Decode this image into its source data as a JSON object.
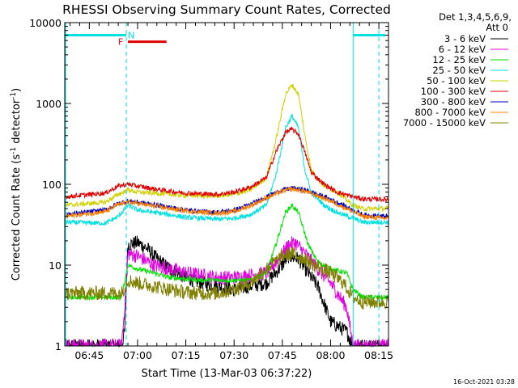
{
  "chart_data": {
    "type": "line",
    "title": "RHESSI Observing Summary Count Rates, Corrected",
    "xlabel": "Start Time (13-Mar-03 06:37:22)",
    "ylabel_main": "Corrected Count Rate (s",
    "ylabel_sup1": "-1",
    "ylabel_mid": " detector",
    "ylabel_sup2": "-1",
    "ylabel_end": ")",
    "footer": "16-Oct-2021 03:28",
    "y_scale": "log",
    "ylim": [
      1,
      10000
    ],
    "xlim": [
      "06:37:22",
      "08:18:00"
    ],
    "x_ticks": [
      "06:45",
      "07:00",
      "07:15",
      "07:30",
      "07:45",
      "08:00",
      "08:15"
    ],
    "y_ticks": [
      "1",
      "10",
      "100",
      "1000",
      "10000"
    ],
    "legend_header": [
      "Det 1,3,4,5,6,9,",
      "Att 0"
    ],
    "legend_position": "right",
    "attenuator_segments": [
      {
        "label": "",
        "start": "06:37:22",
        "end": "06:56:30",
        "y": 7000,
        "color": "#00e0e0"
      },
      {
        "label": "N",
        "start": "06:56:30",
        "end": "06:57:00",
        "y": 7000,
        "color": "#00e0e0"
      },
      {
        "label": "",
        "start": "08:07:00",
        "end": "08:17:00",
        "y": 7000,
        "color": "#00e0e0"
      },
      {
        "label": "F",
        "start": "06:57:00",
        "end": "07:09:00",
        "y": 5800,
        "color": "#e00000"
      }
    ],
    "night_boundaries": [
      "06:56:30",
      "08:07:00",
      "08:15:00"
    ],
    "series": [
      {
        "name": "3 - 6 keV",
        "color": "#000000",
        "points": [
          [
            "06:37:22",
            1
          ],
          [
            "06:55:00",
            1
          ],
          [
            "06:56:00",
            1.5
          ],
          [
            "06:57:00",
            18
          ],
          [
            "07:00:00",
            19
          ],
          [
            "07:03:00",
            16
          ],
          [
            "07:06:00",
            12
          ],
          [
            "07:10:00",
            9
          ],
          [
            "07:15:00",
            7
          ],
          [
            "07:20:00",
            6
          ],
          [
            "07:25:00",
            5.5
          ],
          [
            "07:30:00",
            5
          ],
          [
            "07:35:00",
            5.5
          ],
          [
            "07:40:00",
            6
          ],
          [
            "07:44:00",
            9
          ],
          [
            "07:47:00",
            13
          ],
          [
            "07:50:00",
            12
          ],
          [
            "07:53:00",
            8
          ],
          [
            "07:56:00",
            5.5
          ],
          [
            "08:00:00",
            2
          ],
          [
            "08:05:00",
            1.5
          ],
          [
            "08:07:00",
            1
          ]
        ]
      },
      {
        "name": "6 - 12 keV",
        "color": "#e000e0",
        "points": [
          [
            "06:37:22",
            1
          ],
          [
            "06:55:00",
            1
          ],
          [
            "06:56:00",
            3
          ],
          [
            "06:57:00",
            14
          ],
          [
            "07:00:00",
            13
          ],
          [
            "07:05:00",
            10
          ],
          [
            "07:10:00",
            9
          ],
          [
            "07:15:00",
            8
          ],
          [
            "07:20:00",
            7.5
          ],
          [
            "07:25:00",
            7
          ],
          [
            "07:30:00",
            7
          ],
          [
            "07:35:00",
            7.5
          ],
          [
            "07:40:00",
            8
          ],
          [
            "07:44:00",
            12
          ],
          [
            "07:47:00",
            18
          ],
          [
            "07:49:00",
            19
          ],
          [
            "07:52:00",
            14
          ],
          [
            "07:56:00",
            9
          ],
          [
            "08:00:00",
            6
          ],
          [
            "08:05:00",
            3
          ],
          [
            "08:07:00",
            1
          ]
        ]
      },
      {
        "name": "12 - 25 keV",
        "color": "#00e000",
        "points": [
          [
            "06:37:22",
            4
          ],
          [
            "06:50:00",
            4
          ],
          [
            "06:55:00",
            4
          ],
          [
            "06:57:00",
            10
          ],
          [
            "07:00:00",
            9
          ],
          [
            "07:05:00",
            8
          ],
          [
            "07:10:00",
            7
          ],
          [
            "07:20:00",
            6.5
          ],
          [
            "07:30:00",
            6.5
          ],
          [
            "07:35:00",
            6.5
          ],
          [
            "07:40:00",
            8
          ],
          [
            "07:43:00",
            18
          ],
          [
            "07:46:00",
            45
          ],
          [
            "07:48:00",
            55
          ],
          [
            "07:50:00",
            45
          ],
          [
            "07:53:00",
            18
          ],
          [
            "07:56:00",
            11
          ],
          [
            "08:00:00",
            9
          ],
          [
            "08:05:00",
            8
          ],
          [
            "08:07:00",
            5
          ],
          [
            "08:10:00",
            4
          ],
          [
            "08:17:00",
            4
          ]
        ]
      },
      {
        "name": "25 - 50 keV",
        "color": "#00e0e0",
        "points": [
          [
            "06:37:22",
            34
          ],
          [
            "06:50:00",
            33
          ],
          [
            "06:54:00",
            40
          ],
          [
            "06:57:00",
            55
          ],
          [
            "07:00:00",
            48
          ],
          [
            "07:05:00",
            45
          ],
          [
            "07:10:00",
            42
          ],
          [
            "07:15:00",
            39
          ],
          [
            "07:20:00",
            38
          ],
          [
            "07:25:00",
            37
          ],
          [
            "07:30:00",
            38
          ],
          [
            "07:35:00",
            42
          ],
          [
            "07:40:00",
            55
          ],
          [
            "07:43:00",
            130
          ],
          [
            "07:46:00",
            500
          ],
          [
            "07:48:00",
            700
          ],
          [
            "07:50:00",
            500
          ],
          [
            "07:52:00",
            150
          ],
          [
            "07:54:00",
            80
          ],
          [
            "07:58:00",
            55
          ],
          [
            "08:02:00",
            45
          ],
          [
            "08:07:00",
            38
          ],
          [
            "08:10:00",
            34
          ],
          [
            "08:17:00",
            34
          ]
        ]
      },
      {
        "name": "50 - 100 keV",
        "color": "#d0d000",
        "points": [
          [
            "06:37:22",
            55
          ],
          [
            "06:50:00",
            60
          ],
          [
            "06:54:00",
            75
          ],
          [
            "06:57:00",
            85
          ],
          [
            "07:00:00",
            80
          ],
          [
            "07:05:00",
            78
          ],
          [
            "07:10:00",
            75
          ],
          [
            "07:15:00",
            73
          ],
          [
            "07:20:00",
            72
          ],
          [
            "07:25:00",
            72
          ],
          [
            "07:30:00",
            75
          ],
          [
            "07:35:00",
            85
          ],
          [
            "07:40:00",
            120
          ],
          [
            "07:43:00",
            350
          ],
          [
            "07:46:00",
            1300
          ],
          [
            "07:48:00",
            1700
          ],
          [
            "07:50:00",
            1300
          ],
          [
            "07:52:00",
            400
          ],
          [
            "07:54:00",
            150
          ],
          [
            "07:58:00",
            95
          ],
          [
            "08:02:00",
            80
          ],
          [
            "08:07:00",
            55
          ],
          [
            "08:10:00",
            50
          ],
          [
            "08:17:00",
            50
          ]
        ]
      },
      {
        "name": "100 - 300 keV",
        "color": "#e00000",
        "points": [
          [
            "06:37:22",
            70
          ],
          [
            "06:50:00",
            78
          ],
          [
            "06:54:00",
            95
          ],
          [
            "06:57:00",
            100
          ],
          [
            "07:00:00",
            95
          ],
          [
            "07:05:00",
            88
          ],
          [
            "07:10:00",
            82
          ],
          [
            "07:15:00",
            78
          ],
          [
            "07:20:00",
            76
          ],
          [
            "07:25:00",
            75
          ],
          [
            "07:30:00",
            80
          ],
          [
            "07:35:00",
            92
          ],
          [
            "07:40:00",
            120
          ],
          [
            "07:43:00",
            250
          ],
          [
            "07:46:00",
            440
          ],
          [
            "07:48:00",
            480
          ],
          [
            "07:50:00",
            420
          ],
          [
            "07:52:00",
            250
          ],
          [
            "07:54:00",
            140
          ],
          [
            "07:58:00",
            100
          ],
          [
            "08:02:00",
            80
          ],
          [
            "08:07:00",
            70
          ],
          [
            "08:10:00",
            66
          ],
          [
            "08:17:00",
            65
          ]
        ]
      },
      {
        "name": "300 - 800 keV",
        "color": "#0000c0",
        "points": [
          [
            "06:37:22",
            42
          ],
          [
            "06:50:00",
            48
          ],
          [
            "06:54:00",
            58
          ],
          [
            "06:57:00",
            62
          ],
          [
            "07:00:00",
            60
          ],
          [
            "07:05:00",
            56
          ],
          [
            "07:10:00",
            52
          ],
          [
            "07:15:00",
            48
          ],
          [
            "07:20:00",
            46
          ],
          [
            "07:25:00",
            45
          ],
          [
            "07:30:00",
            48
          ],
          [
            "07:35:00",
            56
          ],
          [
            "07:40:00",
            70
          ],
          [
            "07:45:00",
            85
          ],
          [
            "07:48:00",
            90
          ],
          [
            "07:52:00",
            85
          ],
          [
            "07:56:00",
            75
          ],
          [
            "08:00:00",
            65
          ],
          [
            "08:04:00",
            55
          ],
          [
            "08:07:00",
            48
          ],
          [
            "08:10:00",
            42
          ],
          [
            "08:17:00",
            40
          ]
        ]
      },
      {
        "name": "800 - 7000 keV",
        "color": "#ff8000",
        "points": [
          [
            "06:37:22",
            40
          ],
          [
            "06:50:00",
            46
          ],
          [
            "06:54:00",
            56
          ],
          [
            "06:57:00",
            60
          ],
          [
            "07:00:00",
            58
          ],
          [
            "07:05:00",
            54
          ],
          [
            "07:10:00",
            50
          ],
          [
            "07:15:00",
            47
          ],
          [
            "07:20:00",
            45
          ],
          [
            "07:25:00",
            44
          ],
          [
            "07:30:00",
            46
          ],
          [
            "07:35:00",
            54
          ],
          [
            "07:40:00",
            68
          ],
          [
            "07:45:00",
            82
          ],
          [
            "07:48:00",
            87
          ],
          [
            "07:52:00",
            82
          ],
          [
            "07:56:00",
            72
          ],
          [
            "08:00:00",
            62
          ],
          [
            "08:04:00",
            52
          ],
          [
            "08:07:00",
            46
          ],
          [
            "08:10:00",
            40
          ],
          [
            "08:17:00",
            38
          ]
        ]
      },
      {
        "name": "7000 - 15000 keV",
        "color": "#808000",
        "points": [
          [
            "06:37:22",
            4.5
          ],
          [
            "06:50:00",
            4.5
          ],
          [
            "06:55:00",
            4.5
          ],
          [
            "06:57:00",
            6.5
          ],
          [
            "07:00:00",
            6
          ],
          [
            "07:05:00",
            5.5
          ],
          [
            "07:10:00",
            5
          ],
          [
            "07:15:00",
            4.6
          ],
          [
            "07:20:00",
            4.5
          ],
          [
            "07:25:00",
            4.5
          ],
          [
            "07:30:00",
            5
          ],
          [
            "07:35:00",
            6
          ],
          [
            "07:40:00",
            9
          ],
          [
            "07:45:00",
            13
          ],
          [
            "07:48:00",
            14
          ],
          [
            "07:52:00",
            12
          ],
          [
            "07:55:00",
            10
          ],
          [
            "08:00:00",
            8
          ],
          [
            "08:04:00",
            6
          ],
          [
            "08:07:00",
            4
          ],
          [
            "08:10:00",
            3.5
          ],
          [
            "08:17:00",
            3.5
          ]
        ]
      }
    ]
  }
}
